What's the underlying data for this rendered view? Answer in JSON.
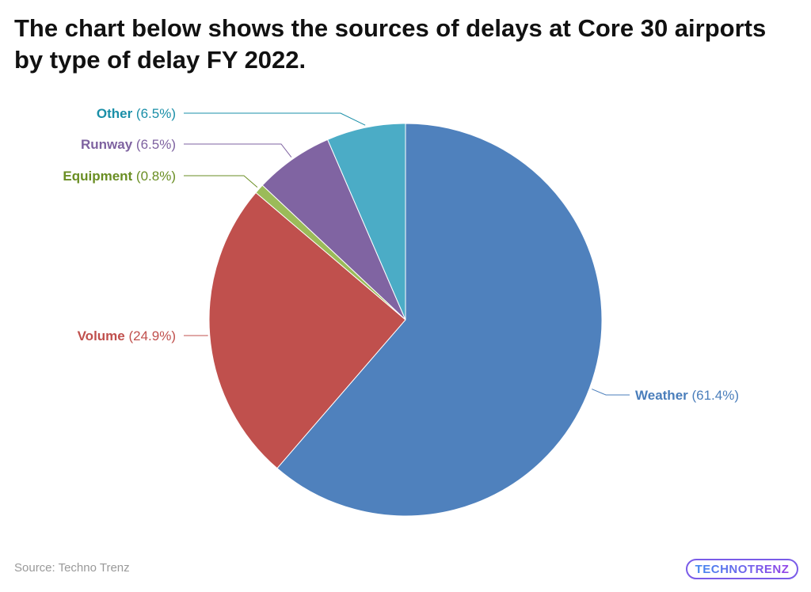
{
  "title": "The chart below shows the sources of delays at Core 30 airports by type of delay FY 2022.",
  "source": "Source: Techno Trenz",
  "logo": "TECHNOTRENZ",
  "chart_data": {
    "type": "pie",
    "title": "The chart below shows the sources of delays at Core 30 airports by type of delay FY 2022.",
    "slices": [
      {
        "name": "Weather",
        "value": 61.4,
        "pct_label": "(61.4%)",
        "color": "#4F81BD",
        "label_color": "#4A7EBB"
      },
      {
        "name": "Volume",
        "value": 24.9,
        "pct_label": "(24.9%)",
        "color": "#C0504D",
        "label_color": "#C0504D"
      },
      {
        "name": "Equipment",
        "value": 0.8,
        "pct_label": "(0.8%)",
        "color": "#9BBB59",
        "label_color": "#6A8E23"
      },
      {
        "name": "Runway",
        "value": 6.5,
        "pct_label": "(6.5%)",
        "color": "#8064A2",
        "label_color": "#7E62A0"
      },
      {
        "name": "Other",
        "value": 6.5,
        "pct_label": "(6.5%)",
        "color": "#4BACC6",
        "label_color": "#1A8FA8"
      }
    ],
    "start": "top",
    "direction": "clockwise"
  }
}
